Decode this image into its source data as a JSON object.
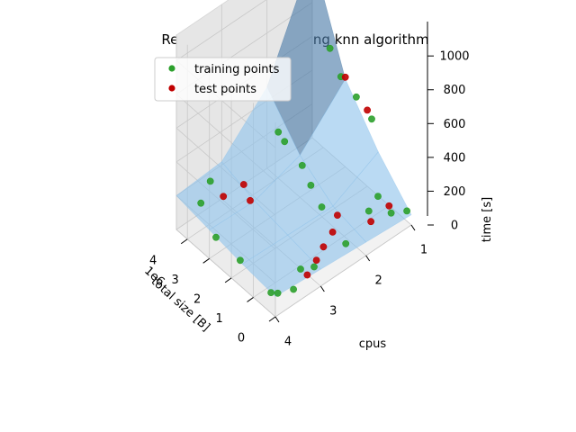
{
  "chart_data": {
    "type": "scatter",
    "subtype": "3d-surface-with-scatter",
    "title": "Regression surface using knn algorithm",
    "xlabel": "total size [B]",
    "x_offset_label": "1e6",
    "ylabel": "cpus",
    "zlabel": "time [s]",
    "x_ticks": [
      "0",
      "1",
      "2",
      "3",
      "4"
    ],
    "y_ticks": [
      "1",
      "2",
      "3",
      "4"
    ],
    "z_ticks": [
      "0",
      "200",
      "400",
      "600",
      "800",
      "1000"
    ],
    "xlim": [
      0,
      4.5
    ],
    "ylim": [
      1,
      4
    ],
    "zlim": [
      0,
      1150
    ],
    "legend": {
      "position": "top-left",
      "entries": [
        {
          "label": "training points",
          "color": "#2ca02c"
        },
        {
          "label": "test points",
          "color": "#c00000"
        }
      ]
    },
    "surface_color": "#4a7aa8",
    "surface_highlight_color": "#8fc4ec",
    "surface": {
      "x": [
        0,
        1.5,
        3,
        4.5
      ],
      "y": [
        1,
        2,
        3,
        4
      ],
      "z": [
        [
          60,
          80,
          100,
          120
        ],
        [
          260,
          120,
          130,
          140
        ],
        [
          520,
          250,
          160,
          170
        ],
        [
          1080,
          480,
          220,
          200
        ]
      ]
    },
    "series": [
      {
        "name": "training points",
        "color": "#2ca02c",
        "points": [
          {
            "x": 4.5,
            "y": 1,
            "z": 1080
          },
          {
            "x": 3.7,
            "y": 1,
            "z": 620
          },
          {
            "x": 3.2,
            "y": 1,
            "z": 510
          },
          {
            "x": 2.5,
            "y": 1,
            "z": 470
          },
          {
            "x": 1.8,
            "y": 1,
            "z": 420
          },
          {
            "x": 0.2,
            "y": 1,
            "z": 60
          },
          {
            "x": 0.4,
            "y": 1.25,
            "z": 70
          },
          {
            "x": 1.1,
            "y": 1.2,
            "z": 80
          },
          {
            "x": 0.9,
            "y": 1.5,
            "z": 70
          },
          {
            "x": 4.4,
            "y": 1.8,
            "z": 190
          },
          {
            "x": 3.7,
            "y": 2.0,
            "z": 250
          },
          {
            "x": 2.9,
            "y": 2.0,
            "z": 200
          },
          {
            "x": 2.3,
            "y": 2.1,
            "z": 170
          },
          {
            "x": 1.6,
            "y": 2.2,
            "z": 140
          },
          {
            "x": 0.3,
            "y": 2.3,
            "z": 90
          },
          {
            "x": 0.3,
            "y": 3.0,
            "z": 80
          },
          {
            "x": 0.5,
            "y": 3.2,
            "z": 80
          },
          {
            "x": 4.4,
            "y": 3.3,
            "z": 170
          },
          {
            "x": 3.8,
            "y": 3.8,
            "z": 200
          },
          {
            "x": 2.7,
            "y": 4.0,
            "z": 160
          },
          {
            "x": 1.6,
            "y": 4.0,
            "z": 150
          },
          {
            "x": 0.2,
            "y": 4.0,
            "z": 120
          },
          {
            "x": 0.1,
            "y": 3.9,
            "z": 110
          },
          {
            "x": 0.0,
            "y": 3.6,
            "z": 90
          }
        ]
      },
      {
        "name": "test points",
        "color": "#c00000",
        "points": [
          {
            "x": 3.0,
            "y": 1,
            "z": 530
          },
          {
            "x": 2.0,
            "y": 1,
            "z": 450
          },
          {
            "x": 0.6,
            "y": 1.2,
            "z": 80
          },
          {
            "x": 0.6,
            "y": 1.6,
            "z": 60
          },
          {
            "x": 1.3,
            "y": 2.0,
            "z": 90
          },
          {
            "x": 0.9,
            "y": 2.3,
            "z": 90
          },
          {
            "x": 0.7,
            "y": 2.6,
            "z": 80
          },
          {
            "x": 0.4,
            "y": 2.9,
            "z": 90
          },
          {
            "x": 0.2,
            "y": 3.2,
            "z": 80
          },
          {
            "x": 3.5,
            "y": 3.0,
            "z": 200
          },
          {
            "x": 3.6,
            "y": 3.4,
            "z": 190
          },
          {
            "x": 3.0,
            "y": 3.1,
            "z": 180
          }
        ]
      }
    ]
  }
}
